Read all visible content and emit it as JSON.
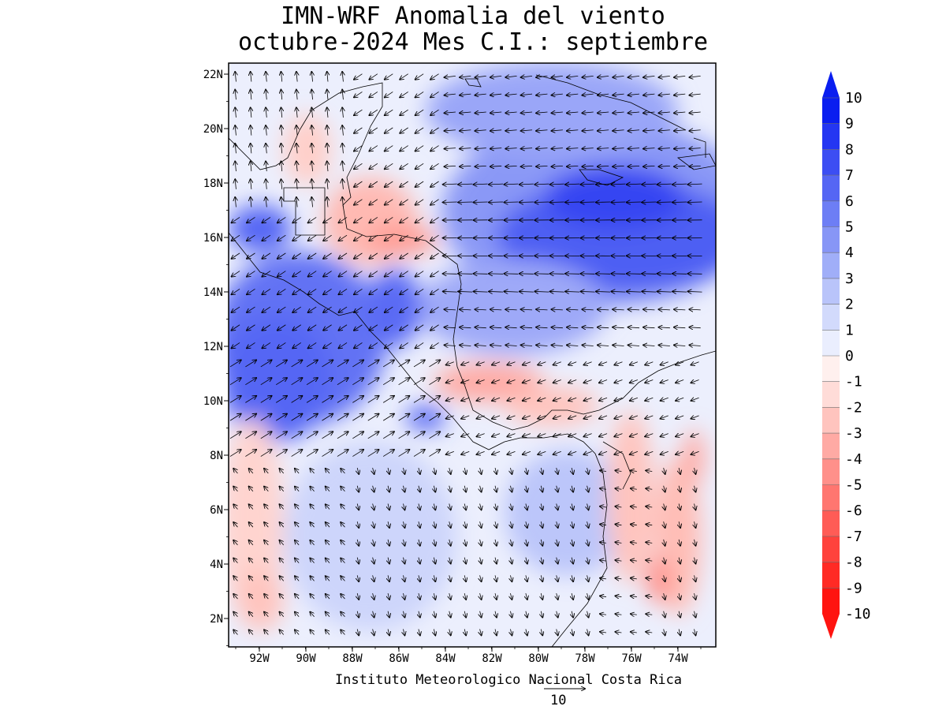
{
  "title": {
    "line1": "IMN-WRF Anomalia del viento",
    "line2": "octubre-2024 Mes C.I.: septiembre"
  },
  "credit": "Instituto Meteorologico Nacional Costa Rica",
  "reference_vector": {
    "value": "10"
  },
  "lat_labels": [
    "22N",
    "20N",
    "18N",
    "16N",
    "14N",
    "12N",
    "10N",
    "8N",
    "6N",
    "4N",
    "2N"
  ],
  "lon_labels": [
    "92W",
    "90W",
    "88W",
    "86W",
    "84W",
    "82W",
    "80W",
    "78W",
    "76W",
    "74W"
  ],
  "colorbar": {
    "labels": [
      "10",
      "9",
      "8",
      "7",
      "6",
      "5",
      "4",
      "3",
      "2",
      "1",
      "0",
      "-1",
      "-2",
      "-3",
      "-4",
      "-5",
      "-6",
      "-7",
      "-8",
      "-9",
      "-10"
    ],
    "colors": [
      "#0a1ef0",
      "#2436f2",
      "#3c4ef3",
      "#5566f4",
      "#6d7ef5",
      "#8796f6",
      "#a0aef8",
      "#b9c4fa",
      "#d2dafc",
      "#eaeefe",
      "#fff0ee",
      "#ffdcd8",
      "#ffc4be",
      "#ffaaa4",
      "#ff908a",
      "#ff7670",
      "#ff5c56",
      "#ff423c",
      "#ff2a24",
      "#ff1410"
    ]
  },
  "chart_data": {
    "type": "heatmap",
    "variable": "Anomalia del viento",
    "x_range": [
      -93.5,
      -72.5
    ],
    "y_range": [
      1,
      22.5
    ],
    "value_range": [
      -10,
      10
    ],
    "strong_positive_regions": [
      "Caribe central 14N-18N",
      "Pacifico 10N-14N 90W-93W"
    ],
    "negative_regions": [
      "Golfo de Honduras 16N",
      "Caribe sur 10N-11N",
      "Colombia oeste 3N-8N"
    ]
  }
}
